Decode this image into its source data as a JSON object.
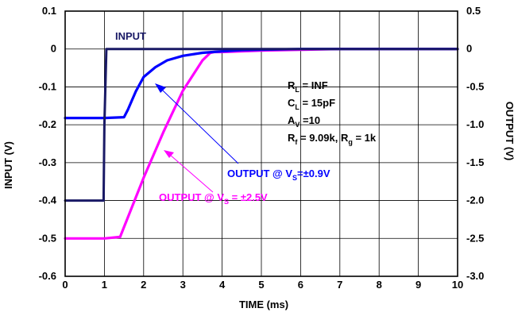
{
  "chart_data": {
    "type": "line",
    "xlabel": "TIME (ms)",
    "ylabel": "INPUT (V)",
    "y2label": "OUTPUT (V)",
    "xlim": [
      0,
      10
    ],
    "ylim": [
      -0.6,
      0.1
    ],
    "y2lim": [
      -3.0,
      0.5
    ],
    "grid": true,
    "x_ticks": [
      "0",
      "1",
      "2",
      "3",
      "4",
      "5",
      "6",
      "7",
      "8",
      "9",
      "10"
    ],
    "y_ticks": [
      "0.1",
      "0",
      "-0.1",
      "-0.2",
      "-0.3",
      "-0.4",
      "-0.5",
      "-0.6"
    ],
    "y2_ticks": [
      "0.5",
      "0",
      "-0.5",
      "-1.0",
      "-1.5",
      "-2.0",
      "-2.5",
      "-3.0"
    ],
    "series": [
      {
        "name": "INPUT",
        "axis": "left",
        "color": "#1a1a66",
        "x": [
          0.0,
          0.98,
          1.0,
          1.05,
          1.2,
          1.5,
          2.0,
          3.0,
          4.0,
          5.0,
          6.0,
          7.0,
          8.0,
          9.0,
          10.0
        ],
        "y": [
          -0.4,
          -0.4,
          -0.2,
          0.0,
          0.0,
          0.0,
          0.0,
          0.0,
          0.0,
          0.0,
          0.0,
          0.0,
          0.0,
          0.0,
          0.0
        ]
      },
      {
        "name": "OUTPUT @ VS=±0.9V",
        "axis": "right",
        "color": "#0000ff",
        "x": [
          0.0,
          1.0,
          1.5,
          1.6,
          1.8,
          2.0,
          2.3,
          2.6,
          3.0,
          3.5,
          4.0,
          4.5,
          5.0,
          6.0,
          7.0,
          8.0,
          9.0,
          10.0
        ],
        "y": [
          -0.91,
          -0.91,
          -0.9,
          -0.8,
          -0.56,
          -0.37,
          -0.24,
          -0.15,
          -0.09,
          -0.05,
          -0.03,
          -0.015,
          -0.01,
          0.0,
          0.0,
          0.0,
          0.0,
          0.0
        ]
      },
      {
        "name": "OUTPUT @ VS = ±2.5V",
        "axis": "right",
        "color": "#ff00ff",
        "x": [
          0.0,
          1.0,
          1.4,
          1.5,
          2.0,
          2.5,
          3.0,
          3.5,
          3.7,
          3.8,
          4.0,
          5.0,
          6.0,
          7.0,
          8.0,
          9.0,
          10.0
        ],
        "y": [
          -2.5,
          -2.5,
          -2.48,
          -2.35,
          -1.7,
          -1.1,
          -0.55,
          -0.15,
          -0.05,
          -0.04,
          -0.04,
          -0.02,
          -0.01,
          0.0,
          0.0,
          0.0,
          0.0
        ]
      }
    ],
    "annotations": {
      "input_label": "INPUT",
      "out09_label": {
        "main": "OUTPUT @ V",
        "sub": "S",
        "tail": "=±0.9V"
      },
      "out25_label": {
        "main": "OUTPUT @ V",
        "sub": "S",
        "tail": " = ±2.5V"
      },
      "conditions": [
        {
          "main": "R",
          "sub": "L",
          "tail": " = INF"
        },
        {
          "main": "C",
          "sub": "L",
          "tail": " = 15pF"
        },
        {
          "main": "A",
          "sub": "V",
          "tail": " =10"
        },
        {
          "main": "R",
          "sub": "f",
          "tail": " = 9.09k, R",
          "sub2": "g",
          "tail2": " = 1k"
        }
      ]
    }
  }
}
